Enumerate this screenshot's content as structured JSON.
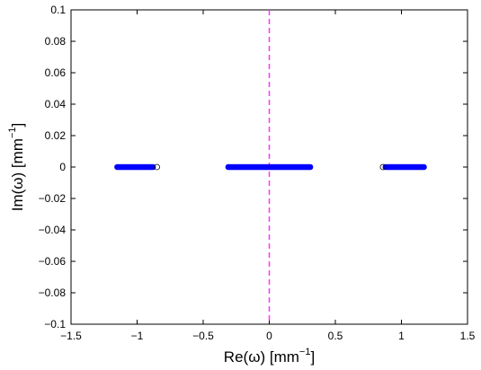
{
  "chart_data": {
    "type": "scatter",
    "xlabel": {
      "prefix": "Re(ω) [mm",
      "sup": "−1",
      "suffix": "]"
    },
    "ylabel": {
      "prefix": "Im(ω) [mm",
      "sup": "−1",
      "suffix": "]"
    },
    "xlim": [
      -1.5,
      1.5
    ],
    "ylim": [
      -0.1,
      0.1
    ],
    "xticks": [
      -1.5,
      -1,
      -0.5,
      0,
      0.5,
      1,
      1.5
    ],
    "xtick_labels": [
      "−1.5",
      "−1",
      "−0.5",
      "0",
      "0.5",
      "1",
      "1.5"
    ],
    "yticks": [
      -0.1,
      -0.08,
      -0.06,
      -0.04,
      -0.02,
      0,
      0.02,
      0.04,
      0.06,
      0.08,
      0.1
    ],
    "ytick_labels": [
      "−0.1",
      "−0.08",
      "−0.06",
      "−0.04",
      "−0.02",
      "0",
      "0.02",
      "0.04",
      "0.06",
      "0.08",
      "0.1"
    ],
    "grid": false,
    "reference_line": {
      "orientation": "vertical",
      "x": 0,
      "style": "dashed",
      "color": "#ff33ff"
    },
    "marker_colors": {
      "filled": "#0000ff",
      "open": "#000000"
    },
    "series": [
      {
        "marker": "filled-circle",
        "color": "#0000ff",
        "y_constant": 0,
        "clusters": [
          {
            "x_from": -1.15,
            "x_to": -0.88,
            "count": 26
          },
          {
            "x_from": -0.31,
            "x_to": 0.31,
            "count": 60
          },
          {
            "x_from": 0.88,
            "x_to": 1.17,
            "count": 28
          }
        ]
      },
      {
        "marker": "open-circle",
        "color": "#000000",
        "points": [
          {
            "x": -0.85,
            "y": 0
          },
          {
            "x": 0.86,
            "y": 0
          }
        ]
      }
    ]
  }
}
